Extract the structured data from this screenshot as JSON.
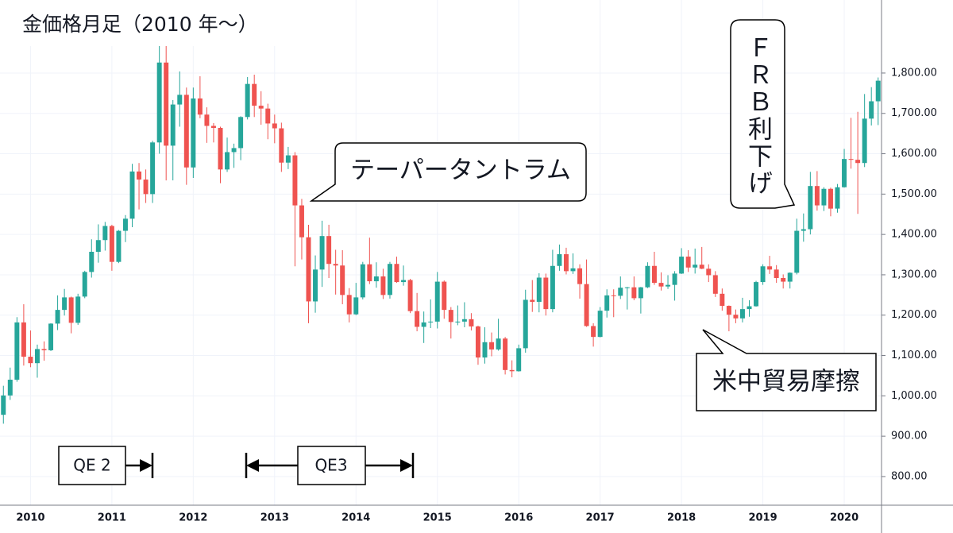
{
  "chart_data": {
    "type": "candlestick",
    "title": "金価格月足（2010 年〜）",
    "annotations": [
      "テーパータントラム",
      "ＦＲＢ利下げ",
      "米中貿易摩擦",
      "QE 2",
      "QE3"
    ],
    "up_color": "#26a69a",
    "down_color": "#ef5350",
    "ylim": [
      729,
      1981
    ],
    "yticks": [
      {
        "value": 800,
        "label": "800.00"
      },
      {
        "value": 900,
        "label": "900.00"
      },
      {
        "value": 1000,
        "label": "1,000.00"
      },
      {
        "value": 1100,
        "label": "1,100.00"
      },
      {
        "value": 1200,
        "label": "1,200.00"
      },
      {
        "value": 1300,
        "label": "1,300.00"
      },
      {
        "value": 1400,
        "label": "1,400.00"
      },
      {
        "value": 1500,
        "label": "1,500.00"
      },
      {
        "value": 1600,
        "label": "1,600.00"
      },
      {
        "value": 1700,
        "label": "1,700.00"
      },
      {
        "value": 1800,
        "label": "1,800.00"
      }
    ],
    "grid": true,
    "categories": [
      null,
      null,
      null,
      null,
      "2010",
      null,
      null,
      null,
      null,
      null,
      null,
      null,
      null,
      null,
      null,
      null,
      "2011",
      null,
      null,
      null,
      null,
      null,
      null,
      null,
      null,
      null,
      null,
      null,
      "2012",
      null,
      null,
      null,
      null,
      null,
      null,
      null,
      null,
      null,
      null,
      null,
      "2013",
      null,
      null,
      null,
      null,
      null,
      null,
      null,
      null,
      null,
      null,
      null,
      "2014",
      null,
      null,
      null,
      null,
      null,
      null,
      null,
      null,
      null,
      null,
      null,
      "2015",
      null,
      null,
      null,
      null,
      null,
      null,
      null,
      null,
      null,
      null,
      null,
      "2016",
      null,
      null,
      null,
      null,
      null,
      null,
      null,
      null,
      null,
      null,
      null,
      "2017",
      null,
      null,
      null,
      null,
      null,
      null,
      null,
      null,
      null,
      null,
      null,
      "2018",
      null,
      null,
      null,
      null,
      null,
      null,
      null,
      null,
      null,
      null,
      null,
      "2019",
      null,
      null,
      null,
      null,
      null,
      null,
      null,
      null,
      null,
      null,
      null,
      "2020",
      null,
      null,
      null,
      null,
      null
    ],
    "open": [
      953,
      1001,
      1040,
      1182,
      1097,
      1081,
      1116,
      1113,
      1179,
      1213,
      1244,
      1181,
      1246,
      1307,
      1357,
      1386,
      1421,
      1332,
      1409,
      1439,
      1556,
      1536,
      1500,
      1628,
      1826,
      1620,
      1722,
      1746,
      1566,
      1737,
      1697,
      1669,
      1664,
      1561,
      1604,
      1614,
      1691,
      1773,
      1719,
      1712,
      1675,
      1663,
      1578,
      1596,
      1472,
      1393,
      1234,
      1313,
      1396,
      1327,
      1323,
      1250,
      1202,
      1244,
      1326,
      1284,
      1296,
      1250,
      1327,
      1282,
      1287,
      1210,
      1171,
      1182,
      1184,
      1283,
      1213,
      1183,
      1184,
      1190,
      1172,
      1095,
      1133,
      1115,
      1142,
      1064,
      1061,
      1118,
      1238,
      1233,
      1293,
      1215,
      1322,
      1351,
      1309,
      1316,
      1277,
      1173,
      1146,
      1211,
      1249,
      1248,
      1268,
      1269,
      1242,
      1269,
      1322,
      1280,
      1271,
      1275,
      1303,
      1345,
      1318,
      1325,
      1315,
      1299,
      1253,
      1223,
      1201,
      1192,
      1215,
      1222,
      1282,
      1321,
      1313,
      1292,
      1283,
      1305,
      1409,
      1413,
      1520,
      1472,
      1513,
      1464,
      1517,
      1587,
      1585,
      1577,
      1687,
      1730
    ],
    "high": [
      1025,
      1070,
      1195,
      1227,
      1162,
      1127,
      1135,
      1180,
      1249,
      1265,
      1246,
      1253,
      1310,
      1388,
      1425,
      1431,
      1424,
      1411,
      1448,
      1575,
      1577,
      1561,
      1632,
      1912,
      1921,
      1733,
      1804,
      1764,
      1764,
      1792,
      1715,
      1676,
      1667,
      1640,
      1625,
      1693,
      1790,
      1796,
      1755,
      1724,
      1697,
      1677,
      1617,
      1604,
      1488,
      1424,
      1348,
      1434,
      1424,
      1362,
      1361,
      1267,
      1280,
      1332,
      1392,
      1331,
      1315,
      1332,
      1345,
      1323,
      1290,
      1255,
      1209,
      1239,
      1307,
      1286,
      1220,
      1224,
      1232,
      1205,
      1174,
      1170,
      1157,
      1191,
      1146,
      1088,
      1127,
      1263,
      1287,
      1304,
      1303,
      1362,
      1375,
      1367,
      1353,
      1326,
      1338,
      1180,
      1220,
      1264,
      1264,
      1296,
      1270,
      1296,
      1270,
      1331,
      1357,
      1306,
      1299,
      1309,
      1366,
      1361,
      1365,
      1369,
      1326,
      1309,
      1266,
      1224,
      1214,
      1243,
      1237,
      1285,
      1326,
      1347,
      1324,
      1301,
      1306,
      1439,
      1452,
      1555,
      1557,
      1517,
      1516,
      1525,
      1612,
      1689,
      1704,
      1748,
      1765,
      1789
    ],
    "low": [
      931,
      990,
      1035,
      1075,
      1071,
      1045,
      1087,
      1111,
      1163,
      1199,
      1155,
      1176,
      1242,
      1293,
      1330,
      1360,
      1310,
      1329,
      1381,
      1418,
      1462,
      1478,
      1478,
      1600,
      1534,
      1534,
      1667,
      1523,
      1540,
      1688,
      1627,
      1628,
      1527,
      1555,
      1565,
      1584,
      1685,
      1691,
      1672,
      1636,
      1626,
      1555,
      1562,
      1321,
      1338,
      1180,
      1206,
      1270,
      1292,
      1251,
      1227,
      1182,
      1200,
      1239,
      1277,
      1268,
      1240,
      1241,
      1280,
      1273,
      1205,
      1160,
      1131,
      1168,
      1167,
      1191,
      1142,
      1175,
      1170,
      1162,
      1077,
      1080,
      1098,
      1112,
      1053,
      1046,
      1060,
      1107,
      1208,
      1207,
      1199,
      1207,
      1310,
      1301,
      1302,
      1241,
      1171,
      1122,
      1145,
      1194,
      1195,
      1240,
      1214,
      1237,
      1204,
      1267,
      1275,
      1261,
      1265,
      1236,
      1302,
      1307,
      1303,
      1314,
      1282,
      1245,
      1211,
      1160,
      1180,
      1182,
      1196,
      1221,
      1275,
      1302,
      1280,
      1266,
      1266,
      1301,
      1382,
      1400,
      1459,
      1458,
      1445,
      1454,
      1516,
      1563,
      1451,
      1567,
      1670,
      1671
    ],
    "close": [
      1001,
      1040,
      1182,
      1097,
      1081,
      1116,
      1113,
      1179,
      1213,
      1244,
      1181,
      1246,
      1307,
      1357,
      1386,
      1421,
      1332,
      1409,
      1439,
      1556,
      1536,
      1500,
      1628,
      1826,
      1620,
      1722,
      1746,
      1566,
      1737,
      1697,
      1669,
      1664,
      1561,
      1604,
      1614,
      1691,
      1773,
      1719,
      1712,
      1675,
      1663,
      1578,
      1596,
      1472,
      1393,
      1234,
      1313,
      1396,
      1327,
      1323,
      1250,
      1202,
      1244,
      1326,
      1284,
      1296,
      1250,
      1327,
      1282,
      1287,
      1210,
      1171,
      1182,
      1184,
      1283,
      1213,
      1183,
      1184,
      1190,
      1172,
      1095,
      1133,
      1115,
      1142,
      1064,
      1061,
      1118,
      1238,
      1233,
      1293,
      1215,
      1322,
      1351,
      1309,
      1316,
      1277,
      1173,
      1146,
      1211,
      1249,
      1248,
      1268,
      1269,
      1242,
      1269,
      1322,
      1280,
      1271,
      1275,
      1303,
      1345,
      1318,
      1325,
      1315,
      1299,
      1253,
      1223,
      1201,
      1192,
      1215,
      1222,
      1282,
      1321,
      1313,
      1292,
      1283,
      1305,
      1409,
      1413,
      1520,
      1472,
      1513,
      1464,
      1517,
      1587,
      1585,
      1577,
      1687,
      1730,
      1781
    ]
  }
}
